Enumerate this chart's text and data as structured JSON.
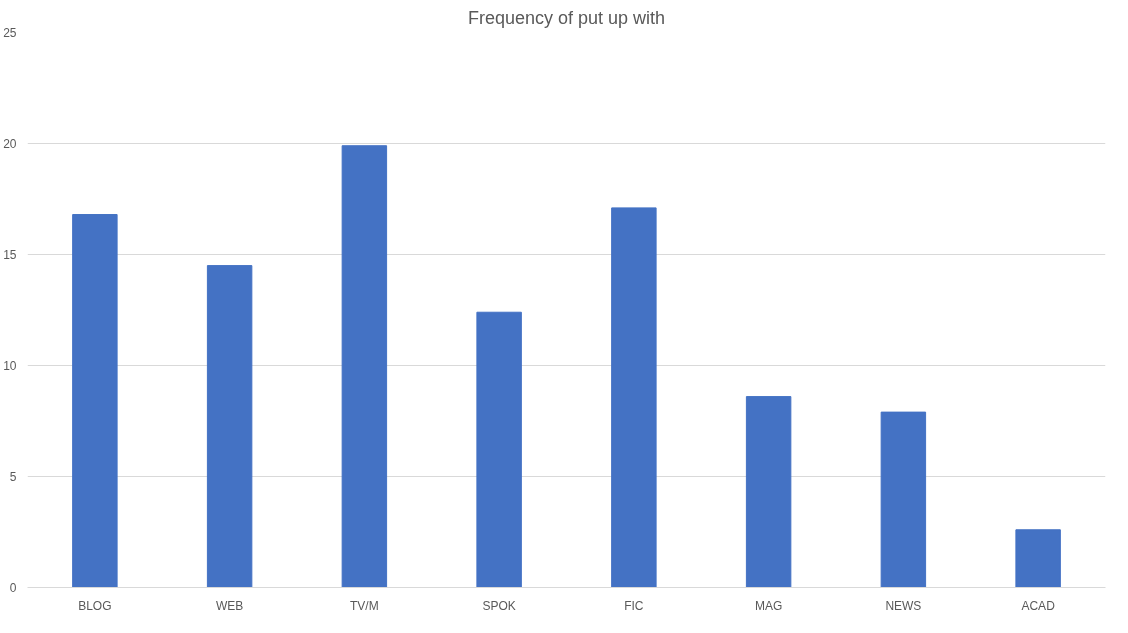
{
  "chart_data": {
    "type": "bar",
    "title": "Frequency of put up with",
    "categories": [
      "BLOG",
      "WEB",
      "TV/M",
      "SPOK",
      "FIC",
      "MAG",
      "NEWS",
      "ACAD"
    ],
    "values": [
      16.8,
      14.5,
      19.9,
      12.4,
      17.1,
      8.6,
      7.9,
      2.6
    ],
    "color": "#4472c4",
    "ylim": [
      0,
      25
    ],
    "yticks": [
      0,
      5,
      10,
      15,
      20,
      25
    ],
    "grid": "y"
  }
}
